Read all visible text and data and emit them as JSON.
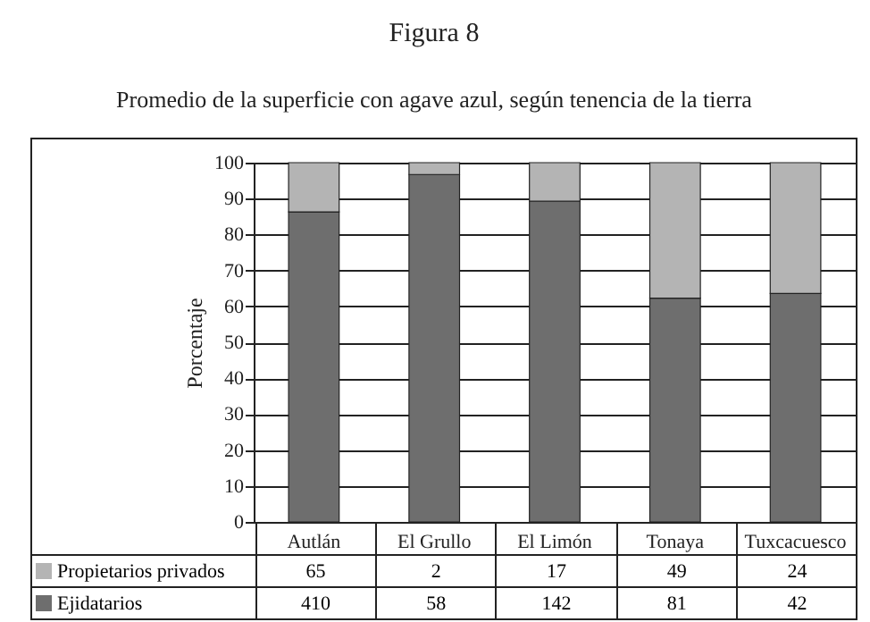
{
  "chart_data": {
    "type": "bar",
    "title": "Figura 8",
    "subtitle": "Promedio de la superficie con agave azul, según tenencia de la tierra",
    "ylabel": "Porcentaje",
    "categories": [
      "Autlán",
      "El Grullo",
      "El Limón",
      "Tonaya",
      "Tuxcacuesco"
    ],
    "stacked": true,
    "series": [
      {
        "name": "Ejidatarios",
        "color": "#6e6e6e",
        "values": [
          86.3,
          96.7,
          89.3,
          62.3,
          63.6
        ]
      },
      {
        "name": "Propietarios privados",
        "color": "#b4b4b4",
        "values": [
          13.7,
          3.3,
          10.7,
          37.7,
          36.4
        ]
      }
    ],
    "annotations": [
      "65",
      "2",
      "17",
      "49",
      "24",
      "410",
      "58",
      "142",
      "81",
      "42"
    ],
    "ylim": [
      0,
      100
    ],
    "yticks": [
      0,
      10,
      20,
      30,
      40,
      50,
      60,
      70,
      80,
      90,
      100
    ],
    "grid": "y",
    "legend": "bottom"
  }
}
